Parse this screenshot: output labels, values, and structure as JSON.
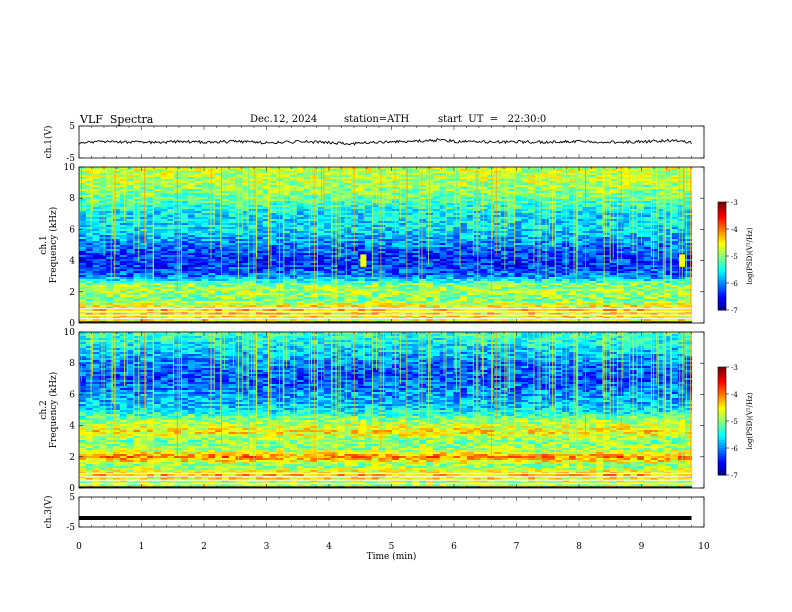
{
  "header": {
    "title": "VLF  Spectra",
    "date": "Dec.12, 2024",
    "station": "station=ATH",
    "start": "start  UT  =   22:30:0"
  },
  "chart_data": [
    {
      "id": "ch1-waveform",
      "type": "line",
      "ylabel": "ch.1(V)",
      "ylim": [
        -5,
        5
      ],
      "yticks": [
        "5",
        "-5"
      ],
      "xlim": [
        0,
        10
      ],
      "series": [
        {
          "x": [
            0,
            0.5,
            1,
            1.5,
            2,
            2.5,
            3,
            3.5,
            4,
            4.3,
            4.5,
            5,
            5.5,
            5.8,
            6,
            6.5,
            7,
            7.5,
            8,
            8.5,
            9,
            9.5,
            9.8
          ],
          "y": [
            -0.3,
            0.2,
            -0.2,
            0.1,
            0.0,
            0.2,
            -0.2,
            0.1,
            -0.1,
            -0.5,
            -0.4,
            0.1,
            0.3,
            0.7,
            0.2,
            0.0,
            0.1,
            -0.1,
            0.2,
            0.0,
            0.1,
            0.5,
            -0.2
          ],
          "color": "#000000"
        }
      ]
    },
    {
      "id": "ch1-spectrogram",
      "type": "heatmap",
      "ylabel": "ch.1\nFrequency (kHz)",
      "ylim": [
        0,
        10
      ],
      "yticks": [
        "0",
        "2",
        "4",
        "6",
        "8",
        "10"
      ],
      "xlim": [
        0,
        9.8
      ],
      "colorbar": {
        "label": "log(PSD)(V²/Hz)",
        "range": [
          -7,
          -3
        ],
        "ticks": [
          "-3",
          "-4",
          "-5",
          "-6",
          "-7"
        ]
      },
      "profile": {
        "freq": [
          0.3,
          0.9,
          1.5,
          2.1,
          2.5,
          3.0,
          3.6,
          4.3,
          5.0,
          6.0,
          7.0,
          8.0,
          9.0,
          9.8
        ],
        "level": [
          -4.5,
          -4.3,
          -5.0,
          -4.8,
          -5.0,
          -6.0,
          -6.3,
          -6.3,
          -6.0,
          -5.6,
          -5.6,
          -5.1,
          -4.8,
          -4.7
        ]
      },
      "bursts_min": [
        4.55,
        9.65
      ]
    },
    {
      "id": "ch2-spectrogram",
      "type": "heatmap",
      "ylabel": "ch.2\nFrequency (kHz)",
      "ylim": [
        0,
        10
      ],
      "yticks": [
        "0",
        "2",
        "4",
        "6",
        "8",
        "10"
      ],
      "xlim": [
        0,
        9.8
      ],
      "colorbar": {
        "label": "log(PSD)(V²/Hz)",
        "range": [
          -7,
          -3
        ],
        "ticks": [
          "-3",
          "-4",
          "-5",
          "-6",
          "-7"
        ]
      },
      "profile": {
        "freq": [
          0.3,
          0.8,
          1.4,
          2.0,
          2.4,
          3.0,
          3.6,
          4.4,
          5.0,
          6.0,
          7.0,
          8.0,
          9.0,
          9.8
        ],
        "level": [
          -4.8,
          -4.2,
          -5.0,
          -4.0,
          -4.8,
          -5.0,
          -4.4,
          -5.0,
          -5.6,
          -5.9,
          -6.2,
          -6.0,
          -5.6,
          -5.3
        ]
      },
      "bursts_min": [
        4.55,
        9.65
      ]
    },
    {
      "id": "ch3-waveform",
      "type": "line",
      "ylabel": "ch.3(V)",
      "ylim": [
        -5,
        5
      ],
      "yticks": [
        "5",
        "-5"
      ],
      "xlim": [
        0,
        10
      ],
      "xlabel": "Time  (min)",
      "xticks": [
        "0",
        "1",
        "2",
        "3",
        "4",
        "5",
        "6",
        "7",
        "8",
        "9",
        "10"
      ],
      "series": [
        {
          "x": [
            0,
            9.8
          ],
          "y": [
            -2,
            -2
          ],
          "color": "#000000"
        }
      ]
    }
  ]
}
